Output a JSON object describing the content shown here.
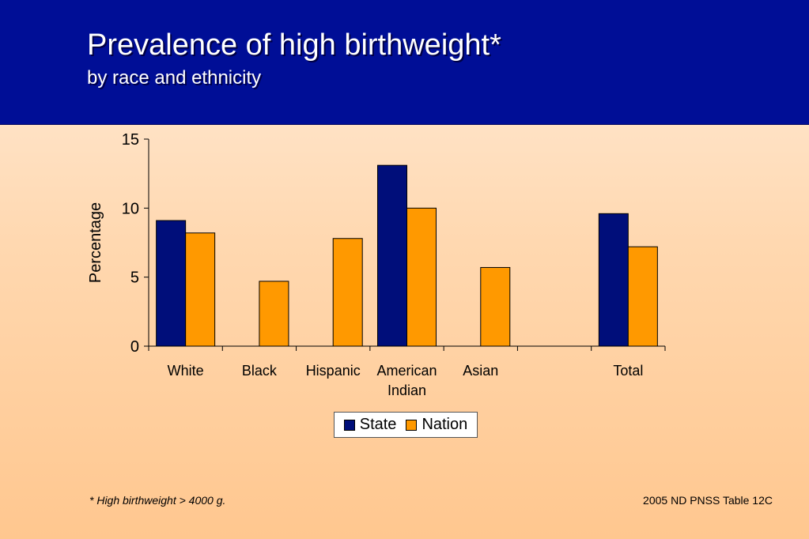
{
  "header": {
    "title": "Prevalence of high birthweight*",
    "subtitle": "by race and ethnicity"
  },
  "chart_data": {
    "type": "bar",
    "categories": [
      "White",
      "Black",
      "Hispanic",
      "American Indian",
      "Asian",
      "",
      "Total"
    ],
    "series": [
      {
        "name": "State",
        "color": "#000e7a",
        "values": [
          9.1,
          null,
          null,
          13.1,
          null,
          null,
          9.6
        ]
      },
      {
        "name": "Nation",
        "color": "#ff9900",
        "values": [
          8.2,
          4.7,
          7.8,
          10.0,
          5.7,
          null,
          7.2
        ]
      }
    ],
    "ylabel": "Percentage",
    "ylim": [
      0,
      15
    ],
    "yticks": [
      0,
      5,
      10,
      15
    ],
    "grid": false,
    "legend": "bottom"
  },
  "footnote": "*  High birthweight > 4000 g.",
  "source": "2005 ND PNSS Table 12C"
}
